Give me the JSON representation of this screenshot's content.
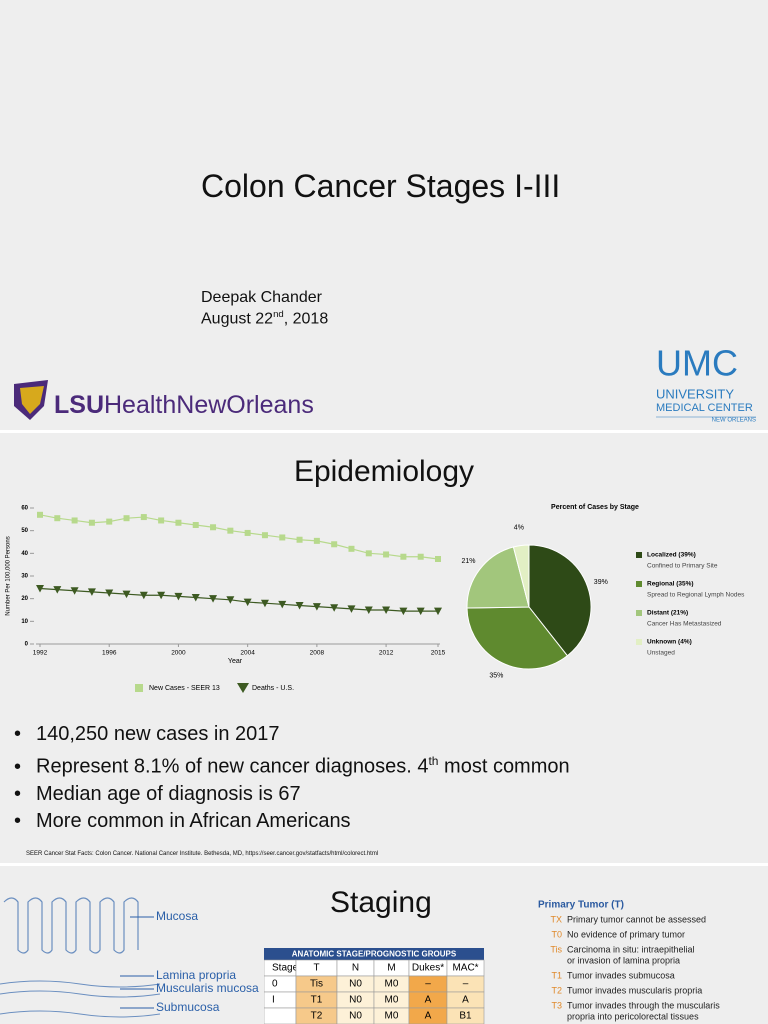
{
  "slide1": {
    "title": "Colon Cancer Stages I-III",
    "author": "Deepak Chander",
    "date": {
      "before": "August 22",
      "sup": "nd",
      "after": ", 2018"
    },
    "lsu_logo": [
      "LSU",
      "Health",
      "New",
      "Orleans"
    ],
    "umc_logo": {
      "mark": "UMC",
      "line1": "UNIVERSITY",
      "line2": "MEDICAL CENTER",
      "line3": "NEW ORLEANS"
    }
  },
  "slide2": {
    "title": "Epidemiology",
    "charts": [
      {
        "type": "line",
        "x_label": "Year",
        "y_label": "Number Per 100,000 Persons",
        "x": [
          1992,
          1993,
          1994,
          1995,
          1996,
          1997,
          1998,
          1999,
          2000,
          2001,
          2002,
          2003,
          2004,
          2005,
          2006,
          2007,
          2008,
          2009,
          2010,
          2011,
          2012,
          2013,
          2014,
          2015
        ],
        "xlim": [
          1992,
          2015
        ],
        "xticks": [
          1992,
          1996,
          2000,
          2004,
          2008,
          2012,
          2015
        ],
        "ylim": [
          0,
          60
        ],
        "yticks": [
          0,
          10,
          20,
          30,
          40,
          50,
          60
        ],
        "series": [
          {
            "name": "New Cases - SEER 13",
            "color": "#b7d98c",
            "marker": "square",
            "values": [
              57,
              55.5,
              54.5,
              53.5,
              54,
              55.5,
              56,
              54.5,
              53.5,
              52.5,
              51.5,
              50,
              49,
              48,
              47,
              46,
              45.5,
              44,
              42,
              40,
              39.5,
              38.5,
              38.5,
              37.5
            ]
          },
          {
            "name": "Deaths - U.S.",
            "color": "#3d5a22",
            "marker": "triangle-down",
            "values": [
              24.5,
              24,
              23.5,
              23,
              22.5,
              22,
              21.5,
              21.5,
              21,
              20.5,
              20,
              19.5,
              18.5,
              18,
              17.5,
              17,
              16.5,
              16,
              15.5,
              15,
              15,
              14.5,
              14.5,
              14.5
            ]
          }
        ]
      },
      {
        "type": "pie",
        "title": "Percent of Cases by Stage",
        "categories": [
          "Localized (39%)",
          "Regional (35%)",
          "Distant (21%)",
          "Unknown (4%)"
        ],
        "descriptions": [
          "Confined to Primary Site",
          "Spread to Regional Lymph Nodes",
          "Cancer Has Metastasized",
          "Unstaged"
        ],
        "values": [
          39,
          35,
          21,
          4
        ],
        "value_labels": [
          "39%",
          "35%",
          "21%",
          "4%"
        ],
        "colors": [
          "#2e4a17",
          "#5f8a2f",
          "#a2c67c",
          "#e2efc4"
        ]
      }
    ],
    "bullets": [
      [
        "140,250 new cases in 2017"
      ],
      [
        "Represent 8.1% of new cancer diagnoses. 4",
        "th",
        " most common"
      ],
      [
        "Median age of diagnosis is 67"
      ],
      [
        "More common in African Americans"
      ]
    ],
    "citation": "SEER Cancer Stat Facts: Colon Cancer. National Cancer Institute. Bethesda, MD, https://seer.cancer.gov/statfacts/html/colorect.html"
  },
  "slide3": {
    "title": "Staging",
    "anatomy_labels": [
      "Mucosa",
      "Lamina propria",
      "Muscularis mucosa",
      "Submucosa"
    ],
    "table": {
      "title": "ANATOMIC STAGE/PROGNOSTIC GROUPS",
      "header": [
        "Stage",
        "T",
        "N",
        "M",
        "Dukes*",
        "MAC*"
      ],
      "rows": [
        [
          "0",
          "Tis",
          "N0",
          "M0",
          "–",
          "–"
        ],
        [
          "I",
          "T1",
          "N0",
          "M0",
          "A",
          "A"
        ],
        [
          null,
          "T2",
          "N0",
          "M0",
          "A",
          "B1"
        ]
      ]
    },
    "primary_tumor": {
      "title": "Primary Tumor (T)",
      "items": [
        {
          "code": "TX",
          "text": [
            "Primary tumor cannot be assessed"
          ]
        },
        {
          "code": "T0",
          "text": [
            "No evidence of primary tumor"
          ]
        },
        {
          "code": "Tis",
          "text": [
            "Carcinoma in situ: intraepithelial",
            "or invasion of lamina propria"
          ]
        },
        {
          "code": "T1",
          "text": [
            "Tumor invades submucosa"
          ]
        },
        {
          "code": "T2",
          "text": [
            "Tumor invades muscularis propria"
          ]
        },
        {
          "code": "T3",
          "text": [
            "Tumor invades through the muscularis",
            "propria into pericolorectal tissues"
          ]
        }
      ]
    }
  }
}
